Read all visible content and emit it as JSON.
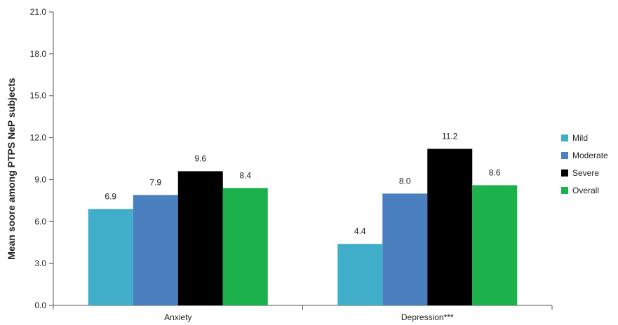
{
  "chart_data": {
    "type": "bar",
    "title": "",
    "xlabel": "",
    "ylabel": "Mean soore among PTPS NeP subjects",
    "ylim": [
      0,
      21
    ],
    "yticks": [
      "0.0",
      "3.0",
      "6.0",
      "9.0",
      "12.0",
      "15.0",
      "18.0",
      "21.0"
    ],
    "categories": [
      "Anxiety",
      "Depression***"
    ],
    "series": [
      {
        "name": "Mild",
        "values": [
          6.9,
          4.4
        ],
        "labels": [
          "6.9",
          "4.4"
        ],
        "color": "#40aec8"
      },
      {
        "name": "Moderate",
        "values": [
          7.9,
          8.0
        ],
        "labels": [
          "7.9",
          "8.0"
        ],
        "color": "#4a7fc0"
      },
      {
        "name": "Severe",
        "values": [
          9.6,
          11.2
        ],
        "labels": [
          "9.6",
          "11.2"
        ],
        "color": "#000000"
      },
      {
        "name": "Overall",
        "values": [
          8.4,
          8.6
        ],
        "labels": [
          "8.4",
          "8.6"
        ],
        "color": "#1db14b"
      }
    ],
    "grid": false,
    "legend_position": "right"
  }
}
